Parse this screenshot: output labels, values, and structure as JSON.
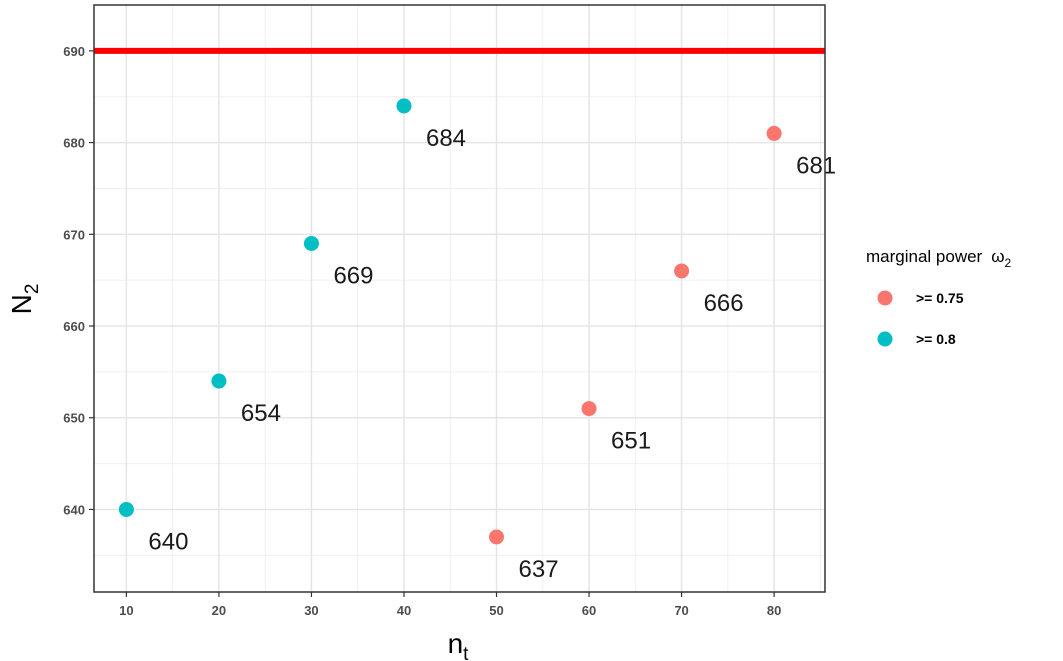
{
  "chart_data": {
    "type": "scatter",
    "xlabel": "n",
    "xlabel_sub": "t",
    "ylabel": "N",
    "ylabel_sub": "2",
    "xlim": [
      6.5,
      85.5
    ],
    "ylim": [
      631,
      695
    ],
    "x_ticks": [
      10,
      20,
      30,
      40,
      50,
      60,
      70,
      80
    ],
    "y_ticks": [
      640,
      650,
      660,
      670,
      680,
      690
    ],
    "grid": true,
    "legend_position": "right",
    "legend": {
      "title": "marginal power",
      "title_symbol": "ω",
      "title_symbol_sub": "2",
      "entries": [
        {
          "label": ">= 0.75",
          "color": "#F8766D"
        },
        {
          "label": ">= 0.8",
          "color": "#00BFC4"
        }
      ]
    },
    "reference_line": {
      "y": 690,
      "color": "#FF0000"
    },
    "series": [
      {
        "name": ">= 0.75",
        "color": "#F8766D",
        "points": [
          {
            "x": 50,
            "y": 637,
            "label": "637"
          },
          {
            "x": 60,
            "y": 651,
            "label": "651"
          },
          {
            "x": 70,
            "y": 666,
            "label": "666"
          },
          {
            "x": 80,
            "y": 681,
            "label": "681"
          }
        ]
      },
      {
        "name": ">= 0.8",
        "color": "#00BFC4",
        "points": [
          {
            "x": 10,
            "y": 640,
            "label": "640"
          },
          {
            "x": 20,
            "y": 654,
            "label": "654"
          },
          {
            "x": 30,
            "y": 669,
            "label": "669"
          },
          {
            "x": 40,
            "y": 684,
            "label": "684"
          }
        ]
      }
    ]
  }
}
